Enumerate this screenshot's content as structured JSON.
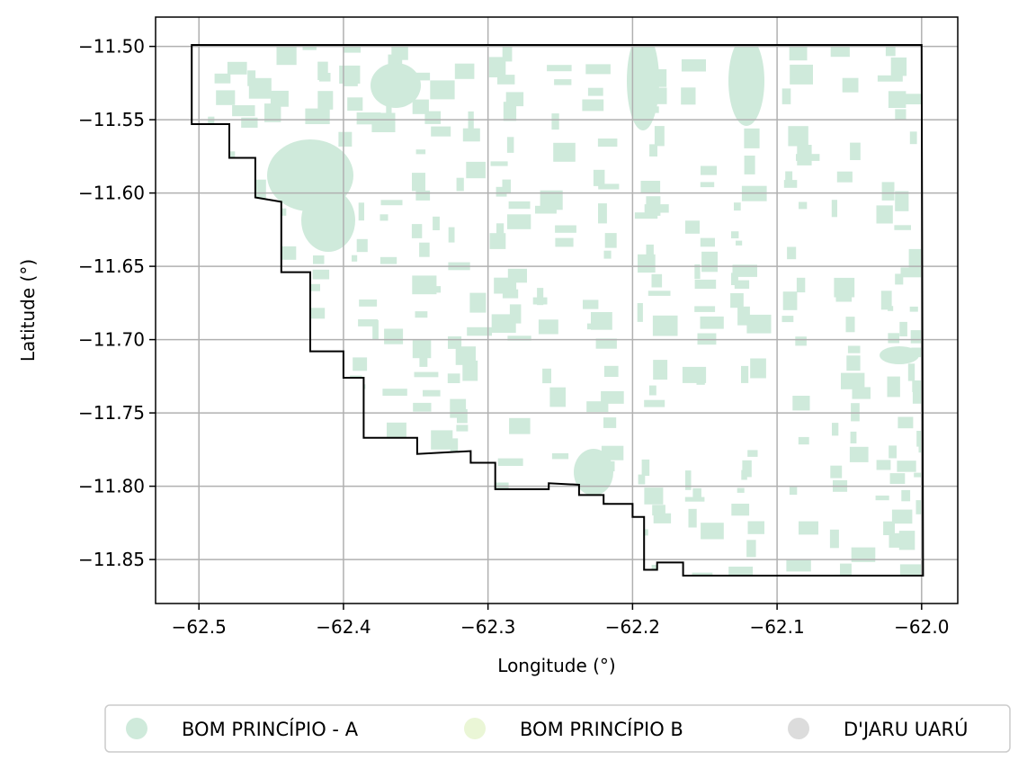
{
  "chart_data": {
    "type": "map",
    "xlabel": "Longitude (°)",
    "ylabel": "Latitude (°)",
    "xlim": [
      -62.53,
      -61.975
    ],
    "ylim": [
      -11.88,
      -11.48
    ],
    "x_ticks": [
      {
        "value": -62.5,
        "label": "−62.5"
      },
      {
        "value": -62.4,
        "label": "−62.4"
      },
      {
        "value": -62.3,
        "label": "−62.3"
      },
      {
        "value": -62.2,
        "label": "−62.2"
      },
      {
        "value": -62.1,
        "label": "−62.1"
      },
      {
        "value": -62.0,
        "label": "−62.0"
      }
    ],
    "y_ticks": [
      {
        "value": -11.5,
        "label": "−11.50"
      },
      {
        "value": -11.55,
        "label": "−11.55"
      },
      {
        "value": -11.6,
        "label": "−11.60"
      },
      {
        "value": -11.65,
        "label": "−11.65"
      },
      {
        "value": -11.7,
        "label": "−11.70"
      },
      {
        "value": -11.75,
        "label": "−11.75"
      },
      {
        "value": -11.8,
        "label": "−11.80"
      },
      {
        "value": -11.85,
        "label": "−11.85"
      }
    ],
    "grid": true,
    "legend_position": "bottom",
    "legend": [
      {
        "label": "BOM PRINCÍPIO - A",
        "color": "#cfeadb"
      },
      {
        "label": "BOM PRINCÍPIO B",
        "color": "#eaf6d6"
      },
      {
        "label": "D'JARU UARÚ",
        "color": "#dcdcdc"
      }
    ],
    "boundary": [
      [
        -62.505,
        -11.499
      ],
      [
        -62.0,
        -11.499
      ],
      [
        -61.999,
        -11.861
      ],
      [
        -62.165,
        -11.861
      ],
      [
        -62.165,
        -11.852
      ],
      [
        -62.183,
        -11.852
      ],
      [
        -62.183,
        -11.857
      ],
      [
        -62.192,
        -11.857
      ],
      [
        -62.192,
        -11.821
      ],
      [
        -62.2,
        -11.821
      ],
      [
        -62.2,
        -11.812
      ],
      [
        -62.22,
        -11.812
      ],
      [
        -62.22,
        -11.806
      ],
      [
        -62.237,
        -11.806
      ],
      [
        -62.237,
        -11.799
      ],
      [
        -62.258,
        -11.798
      ],
      [
        -62.258,
        -11.802
      ],
      [
        -62.295,
        -11.802
      ],
      [
        -62.295,
        -11.784
      ],
      [
        -62.312,
        -11.784
      ],
      [
        -62.312,
        -11.776
      ],
      [
        -62.349,
        -11.778
      ],
      [
        -62.349,
        -11.767
      ],
      [
        -62.386,
        -11.767
      ],
      [
        -62.386,
        -11.726
      ],
      [
        -62.4,
        -11.726
      ],
      [
        -62.4,
        -11.708
      ],
      [
        -62.423,
        -11.708
      ],
      [
        -62.423,
        -11.654
      ],
      [
        -62.443,
        -11.654
      ],
      [
        -62.443,
        -11.606
      ],
      [
        -62.461,
        -11.603
      ],
      [
        -62.461,
        -11.576
      ],
      [
        -62.479,
        -11.576
      ],
      [
        -62.479,
        -11.553
      ],
      [
        -62.505,
        -11.553
      ],
      [
        -62.505,
        -11.499
      ]
    ],
    "fill_color": "#cfeadb",
    "boundary_color": "#000000"
  }
}
